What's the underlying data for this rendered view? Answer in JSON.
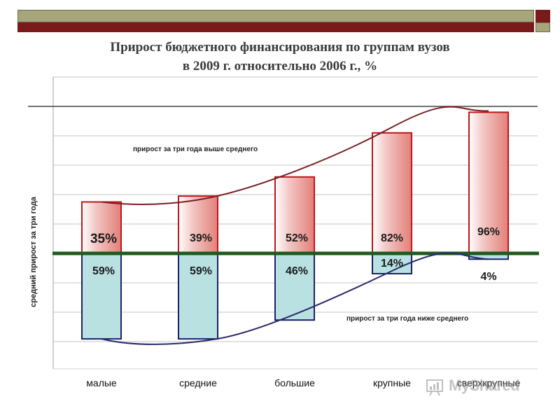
{
  "title_line1": "Прирост бюджетного финансирования по группам вузов",
  "title_line2": "в 2009 г.  относительно 2006 г., %",
  "watermark": "MyShared",
  "colors": {
    "banner_olive": "#a6a67a",
    "banner_maroon": "#7a1a1a",
    "above_fill": "#e8908a",
    "above_border": "#c0151a",
    "below_fill": "#b9e1e2",
    "below_border": "#1d1f6b",
    "average_line": "#1e5a1e",
    "upper_curve": "#7a1f24",
    "lower_curve": "#2a2a6a"
  },
  "chart_data": {
    "type": "bar",
    "ylabel": "средний прирост за три года",
    "categories": [
      "малые",
      "средние",
      "большие",
      "крупные",
      "сверхкрупные"
    ],
    "series": [
      {
        "name": "прирост за три года выше среднего",
        "values": [
          35,
          39,
          52,
          82,
          96
        ],
        "labels": [
          "35%",
          "39%",
          "52%",
          "82%",
          "96%"
        ]
      },
      {
        "name": "прирост за три года ниже среднего",
        "values": [
          59,
          59,
          46,
          14,
          4
        ],
        "labels": [
          "59%",
          "59%",
          "46%",
          "14%",
          "4%"
        ]
      }
    ],
    "annotations": {
      "upper": "прирост за три года выше среднего",
      "lower": "прирост за три года ниже среднего"
    },
    "grid": true,
    "legend": "none"
  }
}
